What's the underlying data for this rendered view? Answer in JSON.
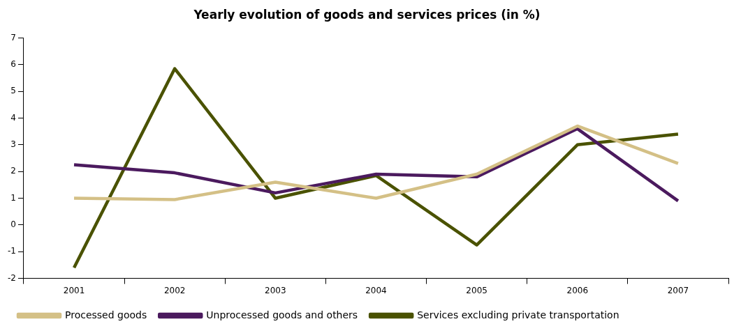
{
  "chart_data": {
    "type": "line",
    "title": "Yearly evolution of goods and services prices (in %)",
    "categories": [
      "2001",
      "2002",
      "2003",
      "2004",
      "2005",
      "2006",
      "2007"
    ],
    "series": [
      {
        "name": "Processed goods",
        "color": "#d4c086",
        "values": [
          1.0,
          0.95,
          1.6,
          1.0,
          1.9,
          3.7,
          2.3
        ]
      },
      {
        "name": "Unprocessed goods and others",
        "color": "#4b1a5e",
        "values": [
          2.25,
          1.95,
          1.2,
          1.9,
          1.8,
          3.6,
          0.9
        ]
      },
      {
        "name": "Services excluding private transportation",
        "color": "#4a5200",
        "values": [
          -1.6,
          5.85,
          1.0,
          1.85,
          -0.75,
          3.0,
          3.4
        ]
      }
    ],
    "ylim": [
      -2,
      7
    ],
    "yticks": [
      -2,
      -1,
      0,
      1,
      2,
      3,
      4,
      5,
      6,
      7
    ],
    "grid": false,
    "legend": "bottom",
    "marker": "none",
    "line_style": "solid"
  }
}
